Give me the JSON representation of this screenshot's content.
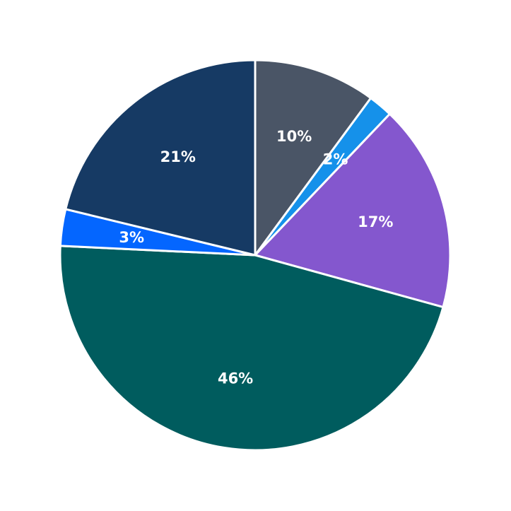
{
  "chart_data": {
    "type": "pie",
    "title": "",
    "start": "top",
    "direction": "clockwise",
    "legend": "none",
    "slices": [
      {
        "value": 10,
        "label": "10%",
        "color": "#4a5566"
      },
      {
        "value": 2,
        "label": "2%",
        "color": "#1591ea"
      },
      {
        "value": 17,
        "label": "17%",
        "color": "#8457ce"
      },
      {
        "value": 46,
        "label": "46%",
        "color": "#005c5e"
      },
      {
        "value": 3,
        "label": "3%",
        "color": "#0466ff"
      },
      {
        "value": 21,
        "label": "21%",
        "color": "#163a64"
      }
    ]
  }
}
